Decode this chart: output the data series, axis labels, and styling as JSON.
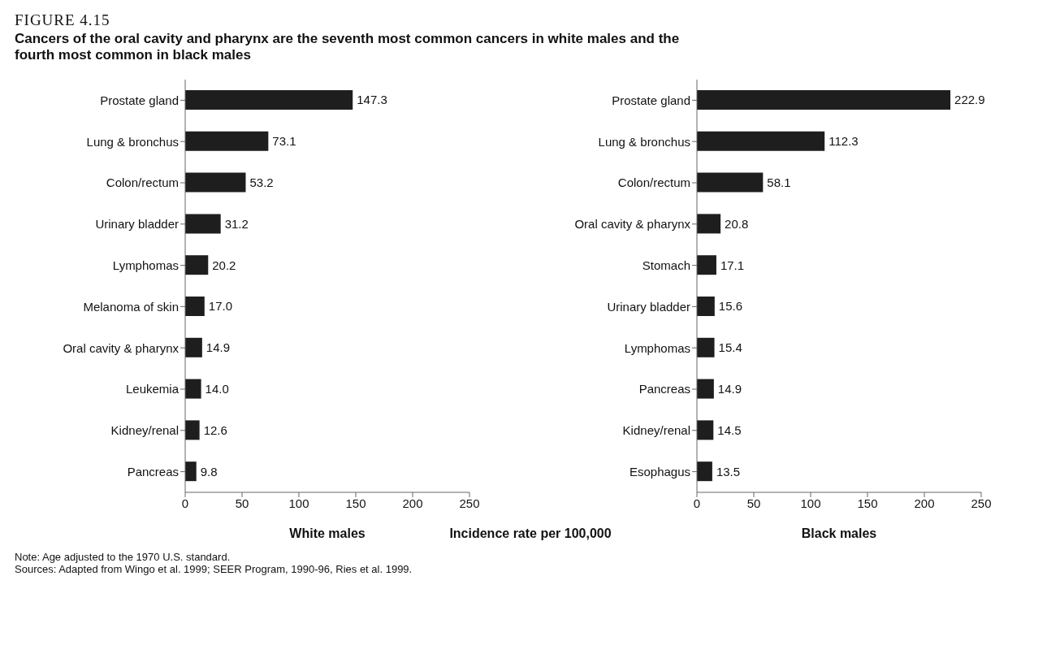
{
  "chart_data": [
    {
      "type": "bar",
      "orientation": "horizontal",
      "title": "FIGURE 4.15",
      "subtitle": "Cancers of the oral cavity and pharynx are the seventh most common cancers in white males and the fourth most common in black males",
      "xlabel": "White males",
      "categories": [
        "Prostate gland",
        "Lung & bronchus",
        "Colon/rectum",
        "Urinary bladder",
        "Lymphomas",
        "Melanoma of skin",
        "Oral cavity & pharynx",
        "Leukemia",
        "Kidney/renal",
        "Pancreas"
      ],
      "values": [
        147.3,
        73.1,
        53.2,
        31.2,
        20.2,
        17.0,
        14.9,
        14.0,
        12.6,
        9.8
      ],
      "color": "#1e1e1e",
      "value_labels": [
        "147.3",
        "73.1",
        "53.2",
        "31.2",
        "20.2",
        "17.0",
        "14.9",
        "14.0",
        "12.6",
        "9.8"
      ],
      "xlim": [
        0,
        250
      ],
      "xticks": [
        0,
        50,
        100,
        150,
        200,
        250
      ],
      "annotations": [
        "Incidence rate per 100,000",
        "Note: Age adjusted to the 1970 U.S. standard.",
        "Sources: Adapted from Wingo et al. 1999; SEER Program, 1990-96, Ries et al. 1999."
      ]
    },
    {
      "type": "bar",
      "orientation": "horizontal",
      "xlabel": "Black males",
      "categories": [
        "Prostate gland",
        "Lung & bronchus",
        "Colon/rectum",
        "Oral cavity & pharynx",
        "Stomach",
        "Urinary bladder",
        "Lymphomas",
        "Pancreas",
        "Kidney/renal",
        "Esophagus"
      ],
      "values": [
        222.9,
        112.3,
        58.1,
        20.8,
        17.1,
        15.6,
        15.4,
        14.9,
        14.5,
        13.5
      ],
      "color": "#1e1e1e",
      "value_labels": [
        "222.9",
        "112.3",
        "58.1",
        "20.8",
        "17.1",
        "15.6",
        "15.4",
        "14.9",
        "14.5",
        "13.5"
      ],
      "xlim": [
        0,
        250
      ],
      "xticks": [
        0,
        50,
        100,
        150,
        200,
        250
      ]
    }
  ]
}
